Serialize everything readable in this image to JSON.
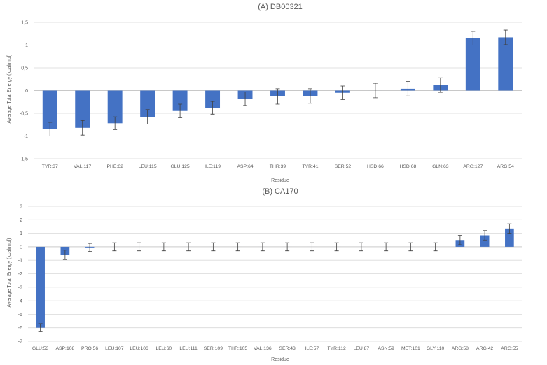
{
  "chart_data": [
    {
      "type": "bar",
      "title": "(A) DB00321",
      "xlabel": "Residue",
      "ylabel": "Average Total Energy (kcal/mol)",
      "ylim": [
        -1.5,
        1.5
      ],
      "yticks": [
        "1,5",
        "1",
        "0,5",
        "0",
        "-0,5",
        "-1",
        "-1,5"
      ],
      "ytick_values": [
        1.5,
        1,
        0.5,
        0,
        -0.5,
        -1,
        -1.5
      ],
      "grid": true,
      "bar_color": "#4472c4",
      "categories": [
        "TYR:37",
        "VAL:117",
        "PHE:62",
        "LEU:115",
        "GLU:125",
        "ILE:119",
        "ASP:64",
        "THR:39",
        "TYR:41",
        "SER:52",
        "HSD:66",
        "HSD:68",
        "GLN:63",
        "ARG:127",
        "ARG:54"
      ],
      "values": [
        -0.85,
        -0.82,
        -0.72,
        -0.58,
        -0.45,
        -0.38,
        -0.18,
        -0.13,
        -0.12,
        -0.05,
        0.0,
        0.04,
        0.12,
        1.15,
        1.17
      ],
      "errors": [
        0.15,
        0.16,
        0.14,
        0.16,
        0.15,
        0.14,
        0.15,
        0.17,
        0.16,
        0.15,
        0.16,
        0.16,
        0.16,
        0.15,
        0.16
      ]
    },
    {
      "type": "bar",
      "title": "(B) CA170",
      "xlabel": "Residue",
      "ylabel": "Average Total Energy (kcal/mol)",
      "ylim": [
        -7,
        3
      ],
      "yticks": [
        "3",
        "2",
        "1",
        "0",
        "-1",
        "-2",
        "-3",
        "-4",
        "-5",
        "-6",
        "-7"
      ],
      "ytick_values": [
        3,
        2,
        1,
        0,
        -1,
        -2,
        -3,
        -4,
        -5,
        -6,
        -7
      ],
      "grid": true,
      "bar_color": "#4472c4",
      "categories": [
        "GLU:53",
        "ASP:108",
        "PRO:56",
        "LEU:107",
        "LEU:106",
        "LEU:60",
        "LEU:111",
        "SER:109",
        "THR:105",
        "VAL:136",
        "SER:43",
        "ILE:57",
        "TYR:112",
        "LEU:87",
        "ASN:59",
        "MET:101",
        "GLY:110",
        "ARG:58",
        "ARG:42",
        "ARG:55"
      ],
      "values": [
        -6.0,
        -0.6,
        -0.05,
        0.0,
        0.0,
        0.0,
        0.0,
        0.0,
        0.0,
        0.0,
        0.0,
        0.0,
        0.0,
        0.0,
        0.0,
        0.0,
        0.0,
        0.5,
        0.85,
        1.35
      ],
      "errors": [
        0.3,
        0.35,
        0.3,
        0.3,
        0.3,
        0.3,
        0.3,
        0.3,
        0.3,
        0.3,
        0.3,
        0.3,
        0.3,
        0.3,
        0.3,
        0.3,
        0.3,
        0.35,
        0.35,
        0.35
      ]
    }
  ]
}
